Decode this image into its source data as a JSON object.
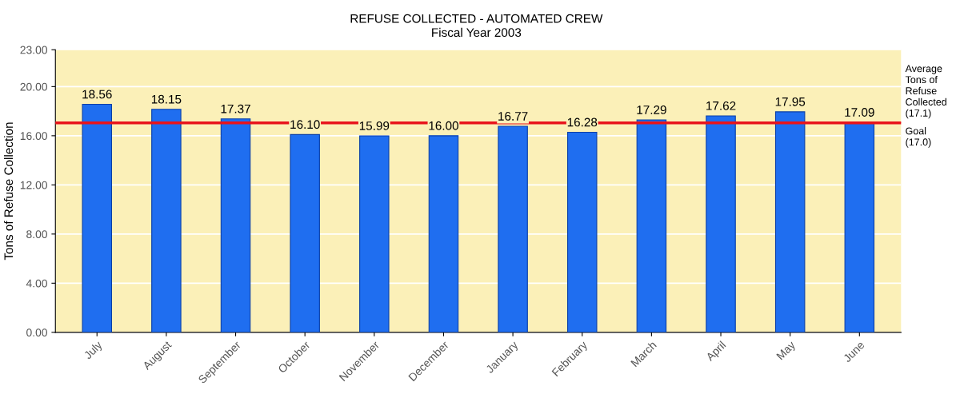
{
  "chart_data": {
    "type": "bar",
    "title": "REFUSE COLLECTED - AUTOMATED CREW",
    "subtitle": "Fiscal Year 2003",
    "ylabel": "Tons of Refuse Collection",
    "categories": [
      "July",
      "August",
      "September",
      "October",
      "November",
      "December",
      "January",
      "February",
      "March",
      "April",
      "May",
      "June"
    ],
    "values": [
      18.56,
      18.15,
      17.37,
      16.1,
      15.99,
      16.0,
      16.77,
      16.28,
      17.29,
      17.62,
      17.95,
      17.09
    ],
    "value_labels": [
      "18.56",
      "18.15",
      "17.37",
      "16.10",
      "15.99",
      "16.00",
      "16.77",
      "16.28",
      "17.29",
      "17.62",
      "17.95",
      "17.09"
    ],
    "color": "#1f6ef0",
    "ylim": [
      0,
      23
    ],
    "yticks": [
      {
        "value": 0,
        "label": "0.00"
      },
      {
        "value": 4,
        "label": "4.00"
      },
      {
        "value": 8,
        "label": "8.00"
      },
      {
        "value": 12,
        "label": "12.00"
      },
      {
        "value": 16,
        "label": "16.00"
      },
      {
        "value": 20,
        "label": "20.00"
      },
      {
        "value": 23,
        "label": "23.00"
      }
    ],
    "ref_lines": [
      {
        "axis": "y",
        "value": 17.1,
        "label": "Average\nTons of\nRefuse\nCollected\n(17.1)",
        "color": "#e8141c"
      },
      {
        "axis": "y",
        "value": 17.0,
        "label": "Goal\n(17.0)",
        "color": "#e8141c"
      }
    ],
    "grid": "y"
  }
}
